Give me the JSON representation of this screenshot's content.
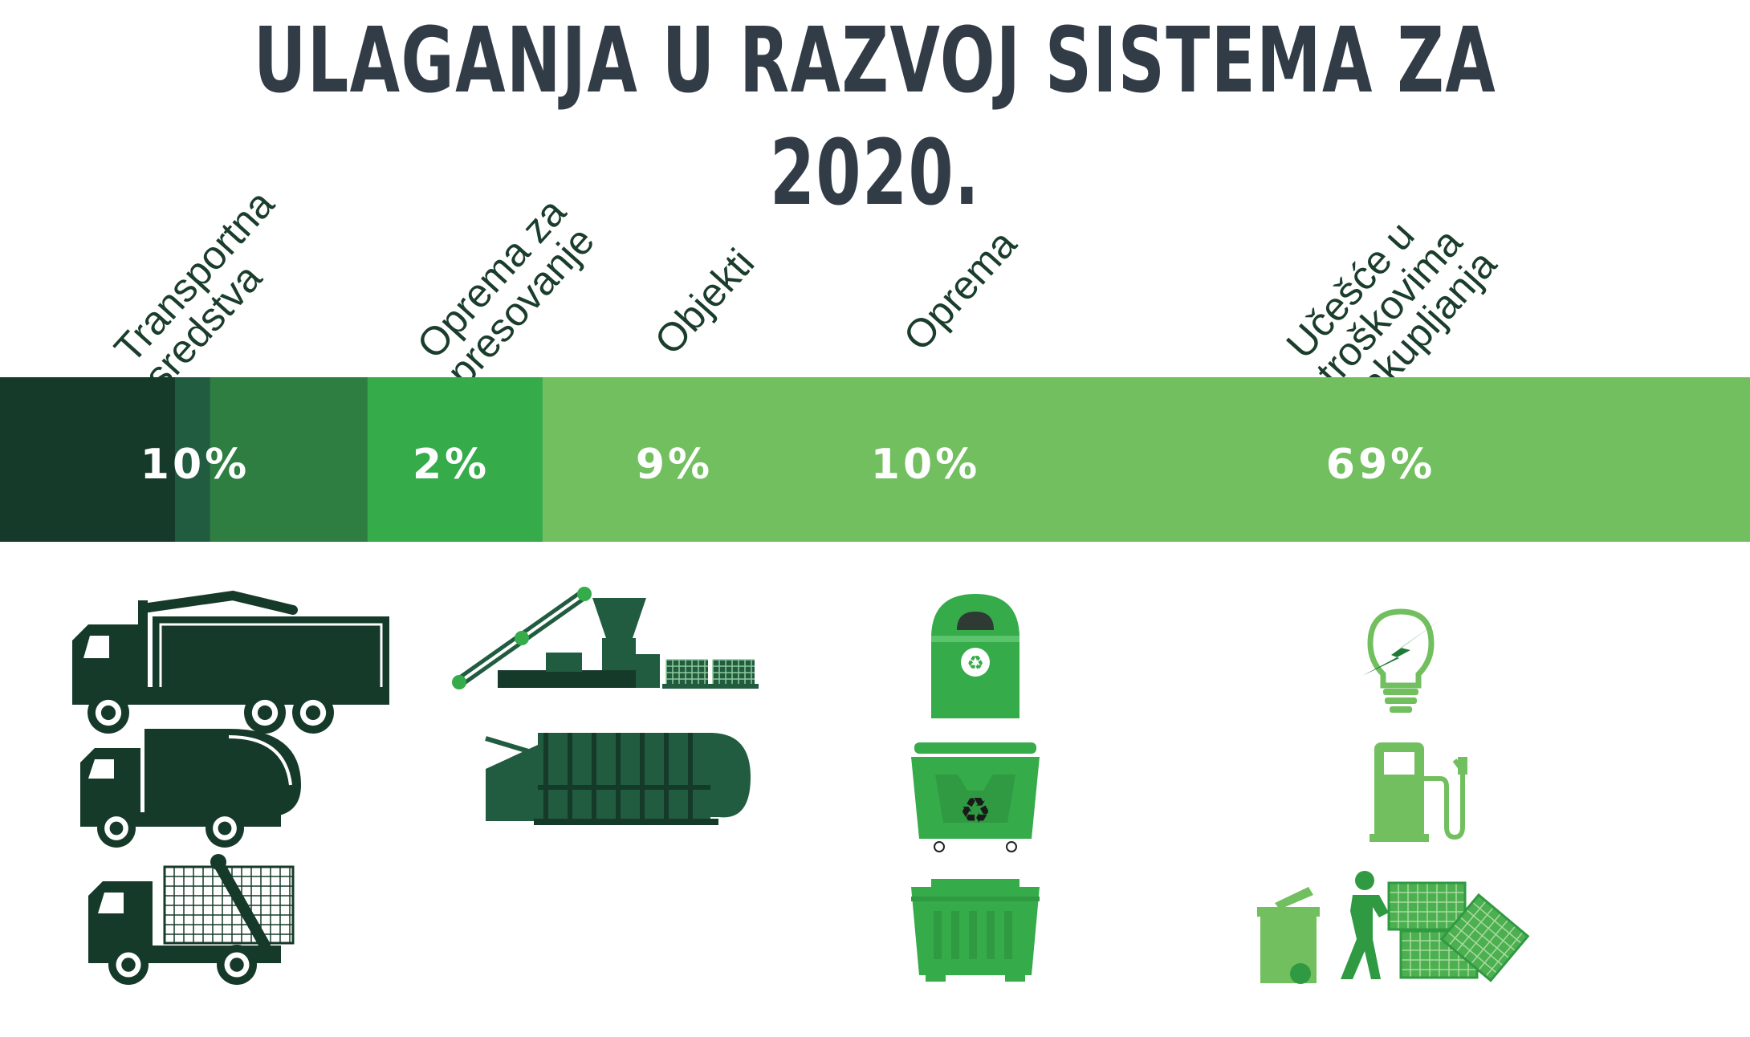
{
  "title": "ULAGANJA U RAZVOJ SISTEMA ZA 2020.",
  "chart_data": {
    "type": "bar",
    "orientation": "stacked-horizontal",
    "title": "ULAGANJA U RAZVOJ SISTEMA ZA 2020.",
    "categories": [
      [
        "Transportna",
        "sredstva"
      ],
      [
        "Oprema za",
        "presovanje"
      ],
      [
        "Objekti"
      ],
      [
        "Oprema"
      ],
      [
        "Učešće u",
        "troškovima",
        "sakupljanja"
      ]
    ],
    "values": [
      10,
      2,
      9,
      10,
      69
    ],
    "value_labels": [
      "10%",
      "2%",
      "9%",
      "10%",
      "69%"
    ],
    "unit": "%",
    "colors": [
      "#163a2a",
      "#215c40",
      "#2e7d41",
      "#35ab4a",
      "#72bf5f"
    ],
    "icons": [
      [
        "crane-truck-icon",
        "garbage-truck-icon",
        "skip-loader-truck-icon"
      ],
      [
        "baler-conveyor-icon",
        "press-container-icon"
      ],
      [],
      [
        "recycling-bin-icon",
        "recycling-container-icon",
        "skip-container-icon"
      ],
      [
        "lightbulb-icon",
        "fuel-pump-icon",
        "worker-bales-icon"
      ]
    ],
    "xlim": [
      0,
      100
    ],
    "legend": "none",
    "grid": false
  }
}
